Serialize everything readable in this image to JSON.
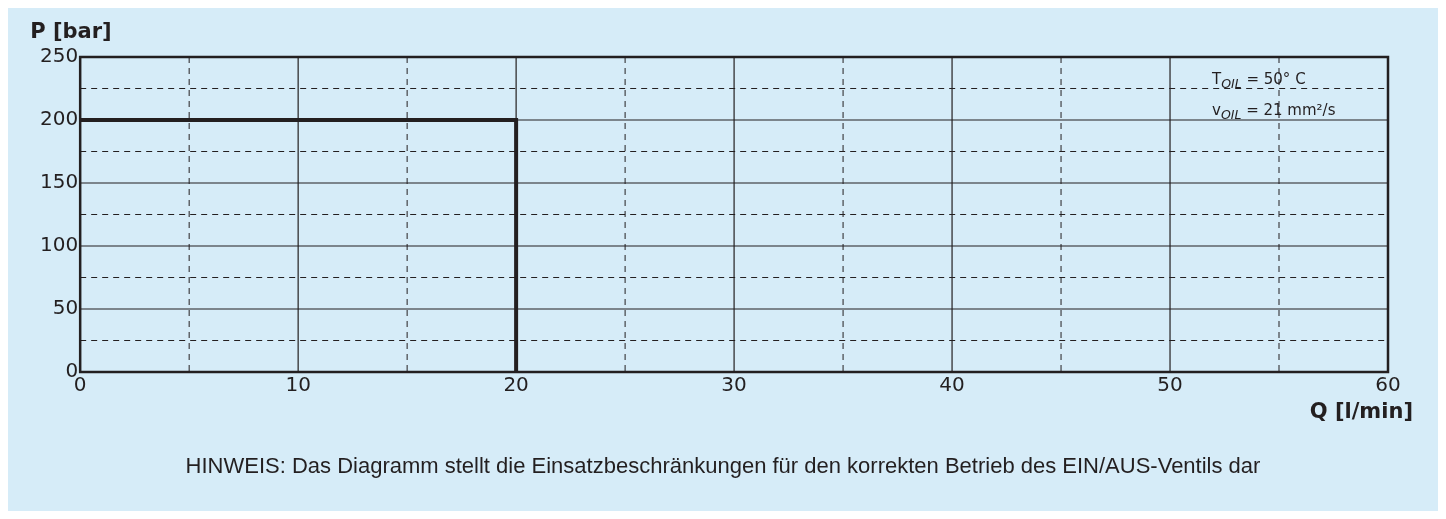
{
  "chart_data": {
    "type": "step",
    "xlabel": "Q [l/min]",
    "ylabel": "P [bar]",
    "x": [
      0,
      20
    ],
    "series": [
      {
        "color": "#231f20",
        "values": [
          200,
          0
        ]
      }
    ],
    "xlim": [
      0,
      60
    ],
    "xticks": [
      0,
      {
        "value": 5,
        "label": null
      },
      10,
      {
        "value": 15,
        "label": null
      },
      20,
      {
        "value": 25,
        "label": null
      },
      30,
      {
        "value": 35,
        "label": null
      },
      40,
      {
        "value": 45,
        "label": null
      },
      50,
      {
        "value": 55,
        "label": null
      },
      60
    ],
    "ylim": [
      0,
      250
    ],
    "yticks": [
      0,
      {
        "value": 25,
        "label": null
      },
      50,
      {
        "value": 75,
        "label": null
      },
      100,
      {
        "value": 125,
        "label": null
      },
      150,
      {
        "value": 175,
        "label": null
      },
      200,
      {
        "value": 225,
        "label": null
      },
      250
    ],
    "grid": true,
    "legend": false,
    "marker": "none",
    "line_style": "solid",
    "annotations": [
      {
        "text": "T$_{OIL}$ = 50° C"
      },
      {
        "text": "v$_{OIL}$ = 21 mm²/s"
      },
      "HINWEIS: Das Diagramm stellt die Einsatzbeschränkungen für den korrekten Betrieb des EIN/AUS-Ventils dar"
    ]
  }
}
